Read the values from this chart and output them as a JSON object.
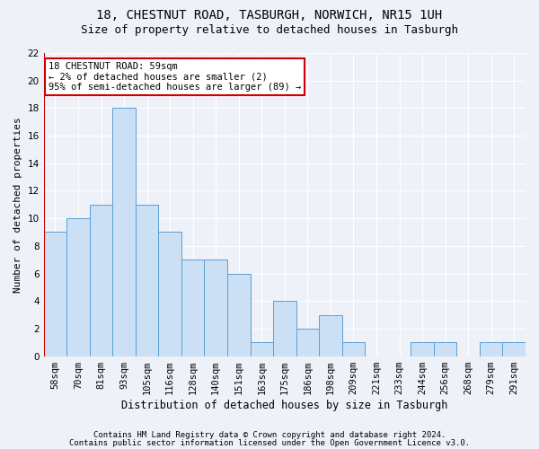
{
  "title1": "18, CHESTNUT ROAD, TASBURGH, NORWICH, NR15 1UH",
  "title2": "Size of property relative to detached houses in Tasburgh",
  "xlabel": "Distribution of detached houses by size in Tasburgh",
  "ylabel": "Number of detached properties",
  "categories": [
    "58sqm",
    "70sqm",
    "81sqm",
    "93sqm",
    "105sqm",
    "116sqm",
    "128sqm",
    "140sqm",
    "151sqm",
    "163sqm",
    "175sqm",
    "186sqm",
    "198sqm",
    "209sqm",
    "221sqm",
    "233sqm",
    "244sqm",
    "256sqm",
    "268sqm",
    "279sqm",
    "291sqm"
  ],
  "values": [
    9,
    10,
    11,
    18,
    11,
    9,
    7,
    7,
    6,
    1,
    4,
    2,
    3,
    1,
    0,
    0,
    1,
    1,
    0,
    1,
    1
  ],
  "bar_color": "#cce0f5",
  "bar_edge_color": "#5a9fd4",
  "highlight_line_color": "#cc0000",
  "annotation_text": "18 CHESTNUT ROAD: 59sqm\n← 2% of detached houses are smaller (2)\n95% of semi-detached houses are larger (89) →",
  "annotation_box_color": "#ffffff",
  "annotation_box_edge_color": "#cc0000",
  "ylim": [
    0,
    22
  ],
  "yticks": [
    0,
    2,
    4,
    6,
    8,
    10,
    12,
    14,
    16,
    18,
    20,
    22
  ],
  "footer1": "Contains HM Land Registry data © Crown copyright and database right 2024.",
  "footer2": "Contains public sector information licensed under the Open Government Licence v3.0.",
  "background_color": "#eef2f8",
  "grid_color": "#ffffff",
  "title1_fontsize": 10,
  "title2_fontsize": 9,
  "xlabel_fontsize": 8.5,
  "ylabel_fontsize": 8,
  "tick_fontsize": 7.5,
  "annotation_fontsize": 7.5,
  "footer_fontsize": 6.5
}
